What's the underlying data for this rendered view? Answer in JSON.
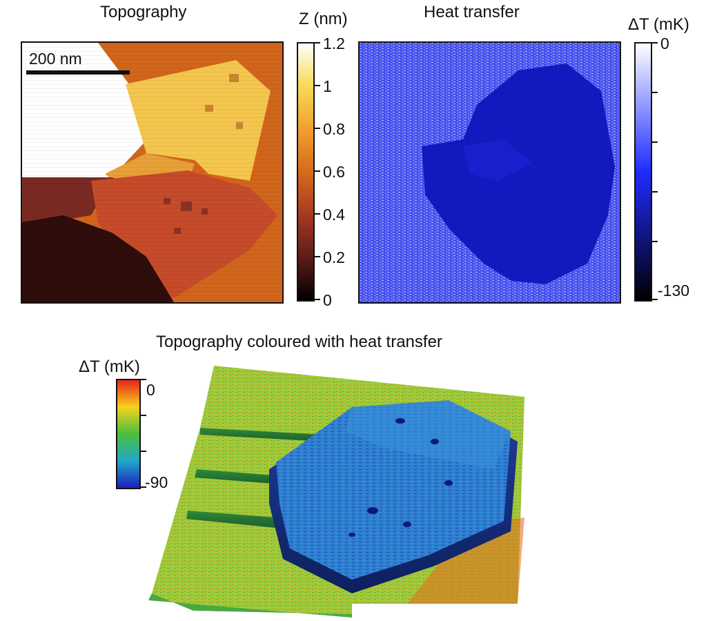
{
  "topography": {
    "title": "Topography",
    "scale_bar": "200 nm",
    "colorbar": {
      "label": "Z (nm)",
      "ticks": [
        "1.2",
        "1",
        "0.8",
        "0.6",
        "0.4",
        "0.2",
        "0"
      ],
      "colors": [
        "#ffffff",
        "#f7da55",
        "#f0a030",
        "#d66a1c",
        "#a53a22",
        "#5e1d18",
        "#000000"
      ]
    }
  },
  "heat_transfer": {
    "title": "Heat transfer",
    "colorbar": {
      "label": "ΔT (mK)",
      "ticks": [
        "0",
        "-130"
      ],
      "colors": [
        "#ffffff",
        "#1f2bff",
        "#000000"
      ]
    }
  },
  "combined": {
    "title": "Topography coloured with heat transfer",
    "colorbar": {
      "label": "ΔT (mK)",
      "ticks": [
        "0",
        "-90"
      ],
      "colors": [
        "#e8241a",
        "#f5d21c",
        "#4bbf3c",
        "#1fa8c8",
        "#1c1fbf"
      ]
    }
  }
}
